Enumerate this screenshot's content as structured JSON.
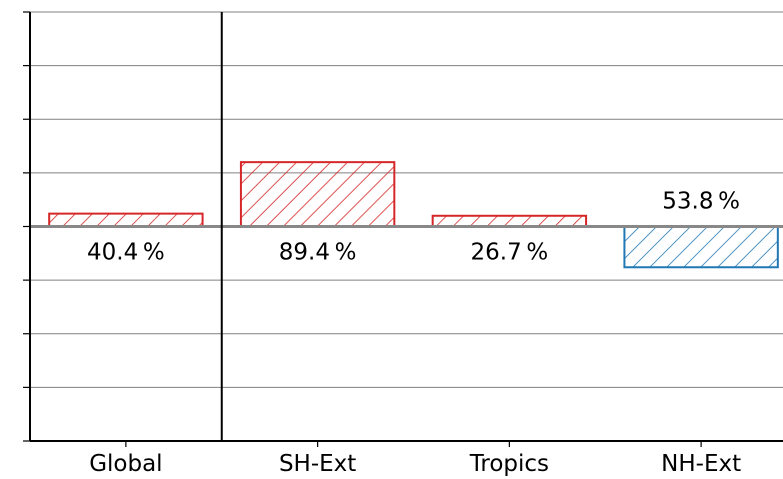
{
  "chart_data": {
    "type": "bar",
    "categories": [
      "Global",
      "SH-Ext",
      "Tropics",
      "NH-Ext"
    ],
    "values": [
      0.06,
      0.3,
      0.05,
      -0.19
    ],
    "data_labels": [
      "40.4 %",
      "89.4 %",
      "26.7 %",
      "53.8 %"
    ],
    "ylim": [
      -1.0,
      1.0
    ],
    "y_tick_count": 9,
    "xlabel": "",
    "ylabel": "",
    "title": "",
    "grid": true,
    "legend": "none",
    "hatch": "diagonal",
    "colors": {
      "positive": "#d62728",
      "negative": "#1f77b4",
      "zero_line": "#888888",
      "grid": "#808080",
      "axis": "#000000"
    }
  }
}
